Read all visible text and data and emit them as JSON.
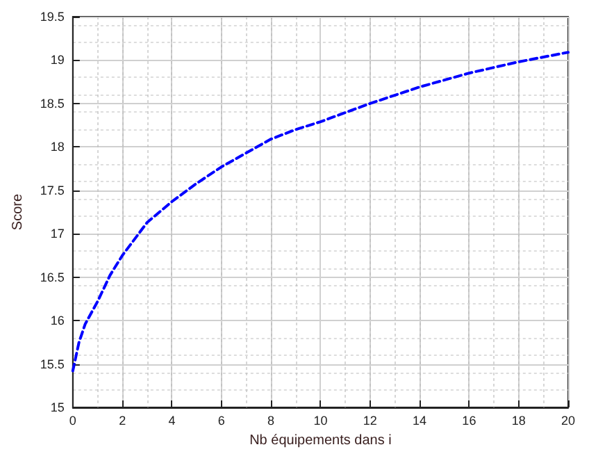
{
  "chart_data": {
    "type": "line",
    "xlabel": "Nb équipements dans i",
    "ylabel": "Score",
    "series": [
      {
        "color": "#0000ff",
        "x": [
          0,
          0.25,
          0.5,
          1,
          1.5,
          2,
          3,
          4,
          5,
          6,
          7,
          8,
          9,
          10,
          12,
          14,
          16,
          18,
          20
        ],
        "values": [
          15.42,
          15.75,
          15.96,
          16.22,
          16.52,
          16.75,
          17.13,
          17.37,
          17.58,
          17.77,
          17.93,
          18.09,
          18.2,
          18.29,
          18.5,
          18.69,
          18.85,
          18.98,
          19.09
        ]
      }
    ],
    "xlim": [
      0,
      20
    ],
    "xticks": [
      0,
      2,
      4,
      6,
      8,
      10,
      12,
      14,
      16,
      18,
      20
    ],
    "ylim": [
      15,
      19.5
    ],
    "yticks": [
      15,
      15.5,
      16,
      16.5,
      17,
      17.5,
      18,
      18.5,
      19,
      19.5
    ],
    "grid": true,
    "marker": "none",
    "line_style": "dashed"
  }
}
